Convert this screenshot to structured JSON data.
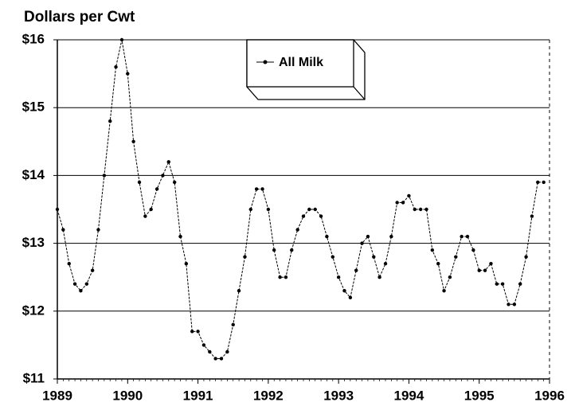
{
  "chart_data": {
    "type": "line",
    "title": "Dollars per Cwt",
    "x": [
      1989,
      1989.083,
      1989.167,
      1989.25,
      1989.333,
      1989.417,
      1989.5,
      1989.583,
      1989.667,
      1989.75,
      1989.833,
      1989.917,
      1990,
      1990.083,
      1990.167,
      1990.25,
      1990.333,
      1990.417,
      1990.5,
      1990.583,
      1990.667,
      1990.75,
      1990.833,
      1990.917,
      1991,
      1991.083,
      1991.167,
      1991.25,
      1991.333,
      1991.417,
      1991.5,
      1991.583,
      1991.667,
      1991.75,
      1991.833,
      1991.917,
      1992,
      1992.083,
      1992.167,
      1992.25,
      1992.333,
      1992.417,
      1992.5,
      1992.583,
      1992.667,
      1992.75,
      1992.833,
      1992.917,
      1993,
      1993.083,
      1993.167,
      1993.25,
      1993.333,
      1993.417,
      1993.5,
      1993.583,
      1993.667,
      1993.75,
      1993.833,
      1993.917,
      1994,
      1994.083,
      1994.167,
      1994.25,
      1994.333,
      1994.417,
      1994.5,
      1994.583,
      1994.667,
      1994.75,
      1994.833,
      1994.917,
      1995,
      1995.083,
      1995.167,
      1995.25,
      1995.333,
      1995.417,
      1995.5,
      1995.583,
      1995.667,
      1995.75,
      1995.833,
      1995.917
    ],
    "series": [
      {
        "name": "All Milk",
        "color": "#000000",
        "values": [
          13.5,
          13.2,
          12.7,
          12.4,
          12.3,
          12.4,
          12.6,
          13.2,
          14.0,
          14.8,
          15.6,
          16.0,
          15.5,
          14.5,
          13.9,
          13.4,
          13.5,
          13.8,
          14.0,
          14.2,
          13.9,
          13.1,
          12.7,
          11.7,
          11.7,
          11.5,
          11.4,
          11.3,
          11.3,
          11.4,
          11.8,
          12.3,
          12.8,
          13.5,
          13.8,
          13.8,
          13.5,
          12.9,
          12.5,
          12.5,
          12.9,
          13.2,
          13.4,
          13.5,
          13.5,
          13.4,
          13.1,
          12.8,
          12.5,
          12.3,
          12.2,
          12.6,
          13.0,
          13.1,
          12.8,
          12.5,
          12.7,
          13.1,
          13.6,
          13.6,
          13.7,
          13.5,
          13.5,
          13.5,
          12.9,
          12.7,
          12.3,
          12.5,
          12.8,
          13.1,
          13.1,
          12.9,
          12.6,
          12.6,
          12.7,
          12.4,
          12.4,
          12.1,
          12.1,
          12.4,
          12.8,
          13.4,
          13.9,
          13.9
        ]
      }
    ],
    "xlim": [
      1989,
      1996
    ],
    "xticks": [
      1989,
      1990,
      1991,
      1992,
      1993,
      1994,
      1995,
      1996
    ],
    "ylim": [
      11,
      16
    ],
    "yticks": [
      {
        "value": 11,
        "label": "$11"
      },
      {
        "value": 12,
        "label": "$12"
      },
      {
        "value": 13,
        "label": "$13"
      },
      {
        "value": 14,
        "label": "$14"
      },
      {
        "value": 15,
        "label": "$15"
      },
      {
        "value": 16,
        "label": "$16"
      }
    ],
    "grid": true
  }
}
